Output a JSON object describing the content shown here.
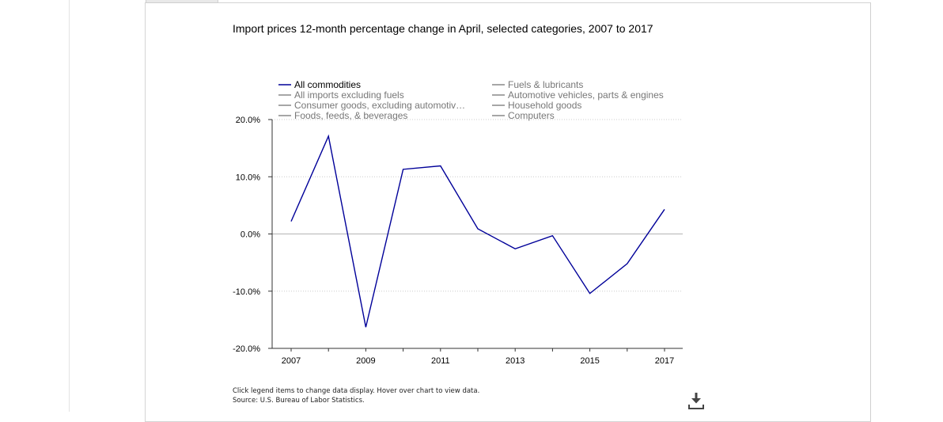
{
  "chart_data": {
    "type": "line",
    "title": "Import prices 12-month percentage change in April, selected categories, 2007 to 2017",
    "x": [
      2007,
      2008,
      2009,
      2010,
      2011,
      2012,
      2013,
      2014,
      2015,
      2016,
      2017
    ],
    "x_tick_labels": [
      "2007",
      "2009",
      "2011",
      "2013",
      "2015",
      "2017"
    ],
    "y_tick_labels": [
      "20.0%",
      "10.0%",
      "0.0%",
      "-10.0%",
      "-20.0%"
    ],
    "ylim": [
      -20,
      20
    ],
    "y_ticks": [
      20,
      10,
      0,
      -10,
      -20
    ],
    "grid": true,
    "legend_position": "top",
    "series": [
      {
        "name": "All commodities",
        "active": true,
        "color": "#000099",
        "values": [
          2.2,
          17.1,
          -16.3,
          11.3,
          11.9,
          0.9,
          -2.6,
          -0.3,
          -10.4,
          -5.2,
          4.3
        ]
      },
      {
        "name": "All imports excluding fuels",
        "active": false,
        "color": "#888888"
      },
      {
        "name": "Consumer goods, excluding automotiv…",
        "active": false,
        "color": "#888888"
      },
      {
        "name": "Foods, feeds, & beverages",
        "active": false,
        "color": "#888888"
      },
      {
        "name": "Fuels & lubricants",
        "active": false,
        "color": "#888888"
      },
      {
        "name": "Automotive vehicles, parts & engines",
        "active": false,
        "color": "#888888"
      },
      {
        "name": "Household goods",
        "active": false,
        "color": "#888888"
      },
      {
        "name": "Computers",
        "active": false,
        "color": "#888888"
      }
    ]
  },
  "footer": {
    "note": "Click legend items to change data display. Hover over chart to view data.",
    "source": "Source: U.S. Bureau of Labor Statistics."
  },
  "icons": {
    "download": "download-icon"
  }
}
